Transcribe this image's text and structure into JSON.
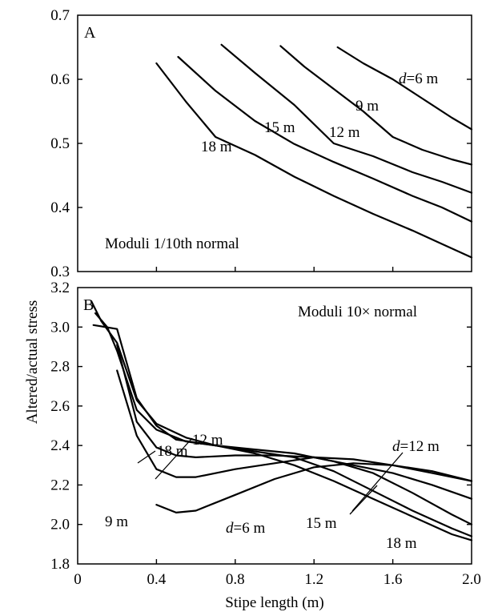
{
  "figure": {
    "ylabel": "Altered/actual stress",
    "xlabel": "Stipe length (m)"
  },
  "chart_data": [
    {
      "panel": "A",
      "type": "line",
      "panel_label": "A",
      "annotation": "Moduli 1/10th normal",
      "xlim": [
        0,
        2.0
      ],
      "ylim": [
        0.3,
        0.7
      ],
      "yticks": [
        "0.3",
        "0.4",
        "0.5",
        "0.6",
        "0.7"
      ],
      "grid": false,
      "series": [
        {
          "label": "d=6 m",
          "label_italic_prefix": "d",
          "label_rest": "=6 m",
          "x": [
            1.32,
            1.45,
            1.6,
            1.75,
            1.9,
            2.0
          ],
          "y": [
            0.65,
            0.625,
            0.6,
            0.57,
            0.54,
            0.522
          ]
        },
        {
          "label": "9 m",
          "x": [
            1.03,
            1.15,
            1.3,
            1.45,
            1.6,
            1.75,
            1.9,
            2.0
          ],
          "y": [
            0.652,
            0.62,
            0.585,
            0.55,
            0.51,
            0.49,
            0.475,
            0.467
          ]
        },
        {
          "label": "12 m",
          "x": [
            0.73,
            0.9,
            1.1,
            1.3,
            1.5,
            1.7,
            1.85,
            2.0
          ],
          "y": [
            0.654,
            0.61,
            0.56,
            0.5,
            0.48,
            0.455,
            0.44,
            0.423
          ]
        },
        {
          "label": "15 m",
          "x": [
            0.51,
            0.7,
            0.9,
            1.1,
            1.3,
            1.5,
            1.7,
            1.85,
            2.0
          ],
          "y": [
            0.635,
            0.582,
            0.535,
            0.499,
            0.471,
            0.445,
            0.418,
            0.4,
            0.378
          ]
        },
        {
          "label": "18 m",
          "x": [
            0.4,
            0.55,
            0.7,
            0.9,
            1.1,
            1.3,
            1.5,
            1.7,
            1.85,
            2.0
          ],
          "y": [
            0.625,
            0.565,
            0.51,
            0.482,
            0.448,
            0.418,
            0.39,
            0.364,
            0.343,
            0.322
          ]
        }
      ]
    },
    {
      "panel": "B",
      "type": "line",
      "panel_label": "B",
      "annotation": "Moduli 10× normal",
      "xlim": [
        0,
        2.0
      ],
      "ylim": [
        1.8,
        3.2
      ],
      "xticks": [
        "0",
        "0.4",
        "0.8",
        "1.2",
        "1.6",
        "2.0"
      ],
      "yticks": [
        "1.8",
        "2.0",
        "2.2",
        "2.4",
        "2.6",
        "2.8",
        "3.0",
        "3.2"
      ],
      "grid": false,
      "series": [
        {
          "label": "18 m",
          "x": [
            0.07,
            0.12,
            0.2,
            0.3,
            0.4,
            0.55,
            0.7,
            0.9,
            1.1,
            1.3,
            1.5,
            1.7,
            1.9,
            2.0
          ],
          "y": [
            3.13,
            3.03,
            2.92,
            2.63,
            2.51,
            2.44,
            2.4,
            2.36,
            2.3,
            2.22,
            2.13,
            2.04,
            1.95,
            1.92
          ]
        },
        {
          "label": "15 m",
          "x": [
            0.09,
            0.15,
            0.2,
            0.3,
            0.4,
            0.55,
            0.7,
            0.9,
            1.1,
            1.3,
            1.5,
            1.7,
            1.9,
            2.0
          ],
          "y": [
            3.07,
            3.0,
            2.88,
            2.58,
            2.48,
            2.42,
            2.4,
            2.37,
            2.34,
            2.27,
            2.17,
            2.07,
            1.98,
            1.94
          ]
        },
        {
          "label": "12 m",
          "x": [
            0.08,
            0.2,
            0.3,
            0.4,
            0.5,
            0.7,
            0.9,
            1.1,
            1.3,
            1.5,
            1.7,
            1.9,
            2.0
          ],
          "y": [
            3.01,
            2.99,
            2.64,
            2.5,
            2.43,
            2.4,
            2.38,
            2.36,
            2.32,
            2.26,
            2.16,
            2.05,
            2.0
          ]
        },
        {
          "label": "9 m",
          "x": [
            0.2,
            0.3,
            0.4,
            0.5,
            0.6,
            0.8,
            1.0,
            1.2,
            1.4,
            1.6,
            1.8,
            2.0
          ],
          "y": [
            2.91,
            2.52,
            2.39,
            2.35,
            2.34,
            2.35,
            2.35,
            2.34,
            2.3,
            2.26,
            2.2,
            2.13
          ]
        },
        {
          "label": "d=12 m",
          "label_italic_prefix": "d",
          "label_rest": "=12 m",
          "x": [
            0.2,
            0.3,
            0.4,
            0.5,
            0.6,
            0.8,
            1.0,
            1.2,
            1.4,
            1.6,
            1.8,
            2.0
          ],
          "y": [
            2.78,
            2.45,
            2.28,
            2.24,
            2.24,
            2.28,
            2.31,
            2.34,
            2.33,
            2.3,
            2.26,
            2.22
          ]
        },
        {
          "label": "d=6 m",
          "label_italic_prefix": "d",
          "label_rest": "=6 m",
          "x": [
            0.4,
            0.5,
            0.6,
            0.8,
            1.0,
            1.2,
            1.4,
            1.6,
            1.8,
            2.0
          ],
          "y": [
            2.1,
            2.06,
            2.07,
            2.15,
            2.23,
            2.29,
            2.31,
            2.3,
            2.27,
            2.22
          ]
        }
      ]
    }
  ]
}
